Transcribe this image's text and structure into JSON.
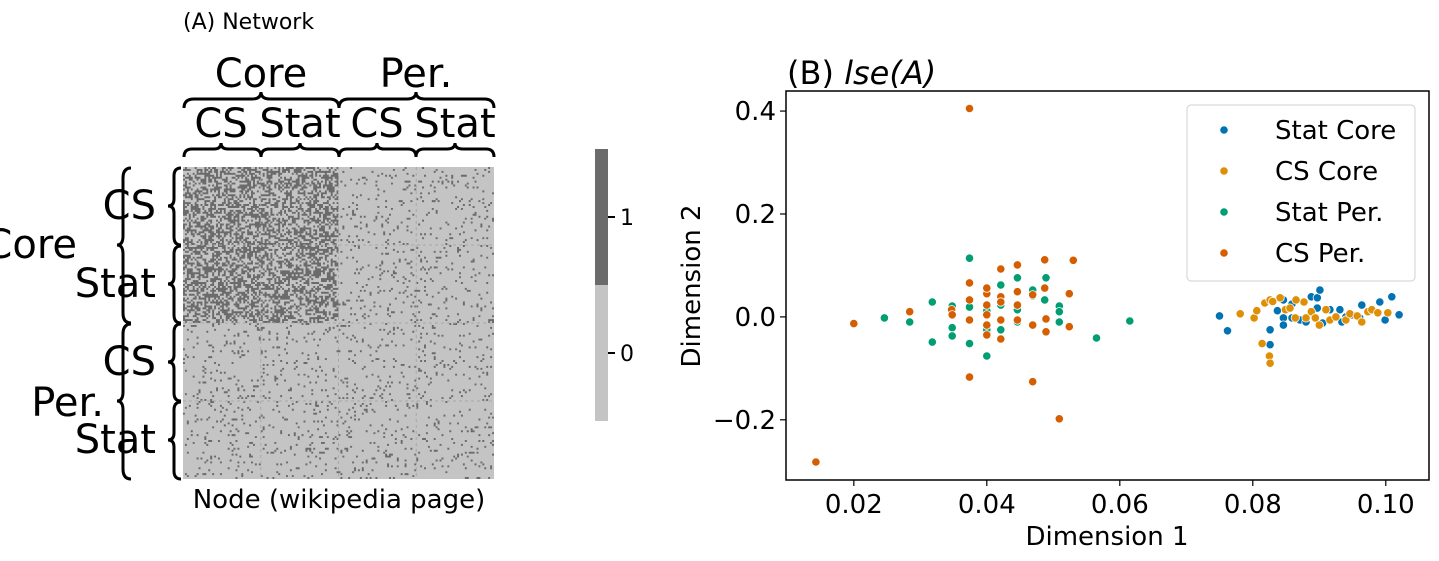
{
  "chart_data": [
    {
      "type": "heatmap",
      "title": "(A) Network",
      "xlabel": "Node (wikipedia page)",
      "ylabel": "",
      "top_groups": [
        "Core",
        "Per."
      ],
      "top_subgroups": [
        "CS",
        "Stat",
        "CS",
        "Stat"
      ],
      "left_groups": [
        "Core",
        "Per."
      ],
      "left_subgroups": [
        "CS",
        "Stat",
        "CS",
        "Stat"
      ],
      "block_density": [
        [
          0.5,
          0.5,
          0.07,
          0.07
        ],
        [
          0.5,
          0.5,
          0.07,
          0.07
        ],
        [
          0.07,
          0.07,
          0.07,
          0.07
        ],
        [
          0.07,
          0.07,
          0.07,
          0.07
        ]
      ],
      "nodes_per_block": 40,
      "colorbar": {
        "ticks": [
          0,
          1
        ],
        "tick_labels": [
          "0",
          "1"
        ],
        "range": [
          -0.5,
          1.5
        ],
        "colors": {
          "0": "#c4c4c4",
          "1": "#6b6b6b"
        }
      }
    },
    {
      "type": "scatter",
      "title_prefix": "(B) ",
      "title_math": "lse(A)",
      "xlabel": "Dimension 1",
      "ylabel": "Dimension 2",
      "xlim": [
        0.0098,
        0.1065
      ],
      "ylim": [
        -0.317,
        0.439
      ],
      "xticks": [
        0.02,
        0.04,
        0.06,
        0.08,
        0.1
      ],
      "xtick_labels": [
        "0.02",
        "0.04",
        "0.06",
        "0.08",
        "0.10"
      ],
      "yticks": [
        -0.2,
        0.0,
        0.2,
        0.4
      ],
      "ytick_labels": [
        "−0.2",
        "0.0",
        "0.2",
        "0.4"
      ],
      "grid": false,
      "legend_position": "top-right",
      "series": [
        {
          "name": "Stat Core",
          "color": "#0173b2",
          "points": [
            [
              0.075,
              0.002
            ],
            [
              0.0762,
              -0.027
            ],
            [
              0.0826,
              -0.025
            ],
            [
              0.0837,
              0.012
            ],
            [
              0.0846,
              0.033
            ],
            [
              0.0846,
              -0.002
            ],
            [
              0.0846,
              -0.016
            ],
            [
              0.0859,
              0.025
            ],
            [
              0.0859,
              -0.002
            ],
            [
              0.0888,
              0.039
            ],
            [
              0.0897,
              0.037
            ],
            [
              0.0897,
              0.017
            ],
            [
              0.0901,
              0.052
            ],
            [
              0.0916,
              0.014
            ],
            [
              0.0934,
              -0.01
            ],
            [
              0.0949,
              0.004
            ],
            [
              0.0961,
              -0.002
            ],
            [
              0.0991,
              0.029
            ],
            [
              0.0999,
              -0.006
            ],
            [
              0.1009,
              0.039
            ],
            [
              0.102,
              0.004
            ],
            [
              0.0826,
              -0.054
            ],
            [
              0.0871,
              -0.006
            ],
            [
              0.0931,
              0.014
            ],
            [
              0.0964,
              0.023
            ],
            [
              0.088,
              -0.01
            ],
            [
              0.0905,
              -0.012
            ],
            [
              0.094,
              0.0
            ]
          ]
        },
        {
          "name": "CS Core",
          "color": "#de8f05",
          "points": [
            [
              0.0825,
              -0.076
            ],
            [
              0.0814,
              -0.052
            ],
            [
              0.0802,
              -0.002
            ],
            [
              0.0806,
              0.012
            ],
            [
              0.0818,
              0.027
            ],
            [
              0.0826,
              0.033
            ],
            [
              0.0849,
              0.014
            ],
            [
              0.0856,
              0.017
            ],
            [
              0.0864,
              -0.002
            ],
            [
              0.0877,
              0.029
            ],
            [
              0.088,
              -0.002
            ],
            [
              0.0888,
              0.01
            ],
            [
              0.0894,
              -0.002
            ],
            [
              0.09,
              -0.016
            ],
            [
              0.091,
              0.014
            ],
            [
              0.0916,
              -0.006
            ],
            [
              0.0925,
              0.0
            ],
            [
              0.094,
              -0.006
            ],
            [
              0.0946,
              0.006
            ],
            [
              0.0957,
              0.002
            ],
            [
              0.0964,
              -0.01
            ],
            [
              0.0973,
              0.01
            ],
            [
              0.0979,
              0.014
            ],
            [
              0.0988,
              0.008
            ],
            [
              0.1003,
              0.008
            ],
            [
              0.0865,
              0.033
            ],
            [
              0.0841,
              0.037
            ],
            [
              0.0781,
              0.006
            ],
            [
              0.0826,
              -0.09
            ],
            [
              0.083,
              0.03
            ]
          ]
        },
        {
          "name": "Stat Per.",
          "color": "#029e73",
          "points": [
            [
              0.0246,
              -0.002
            ],
            [
              0.0318,
              0.029
            ],
            [
              0.0318,
              -0.049
            ],
            [
              0.0348,
              0.021
            ],
            [
              0.0348,
              -0.021
            ],
            [
              0.0348,
              -0.037
            ],
            [
              0.0374,
              0.019
            ],
            [
              0.0374,
              -0.052
            ],
            [
              0.04,
              -0.076
            ],
            [
              0.0374,
              0.114
            ],
            [
              0.0421,
              0.062
            ],
            [
              0.0421,
              -0.025
            ],
            [
              0.0446,
              0.014
            ],
            [
              0.0469,
              0.052
            ],
            [
              0.0469,
              0.041
            ],
            [
              0.0509,
              -0.01
            ],
            [
              0.0565,
              -0.041
            ],
            [
              0.0446,
              0.076
            ],
            [
              0.0489,
              0.076
            ],
            [
              0.0509,
              0.021
            ],
            [
              0.0446,
              -0.01
            ],
            [
              0.0421,
              0.023
            ],
            [
              0.0487,
              0.033
            ],
            [
              0.04,
              0.012
            ],
            [
              0.0509,
              0.01
            ],
            [
              0.0615,
              -0.008
            ],
            [
              0.0284,
              -0.01
            ],
            [
              0.04,
              -0.025
            ]
          ]
        },
        {
          "name": "CS Per.",
          "color": "#d55e00",
          "points": [
            [
              0.0143,
              -0.282
            ],
            [
              0.02,
              -0.013
            ],
            [
              0.0284,
              0.01
            ],
            [
              0.0374,
              0.405
            ],
            [
              0.0374,
              -0.117
            ],
            [
              0.0469,
              -0.126
            ],
            [
              0.0509,
              -0.198
            ],
            [
              0.0421,
              0.093
            ],
            [
              0.0374,
              0.066
            ],
            [
              0.0374,
              0.033
            ],
            [
              0.0446,
              0.101
            ],
            [
              0.0487,
              0.111
            ],
            [
              0.0489,
              -0.004
            ],
            [
              0.0524,
              -0.019
            ],
            [
              0.0446,
              0.023
            ],
            [
              0.0469,
              0.043
            ],
            [
              0.0421,
              0.039
            ],
            [
              0.0421,
              -0.006
            ],
            [
              0.0446,
              -0.006
            ],
            [
              0.0469,
              -0.016
            ],
            [
              0.04,
              0.023
            ],
            [
              0.04,
              0.004
            ],
            [
              0.04,
              -0.016
            ],
            [
              0.04,
              -0.035
            ],
            [
              0.0347,
              0.014
            ],
            [
              0.0421,
              -0.043
            ],
            [
              0.0489,
              -0.029
            ],
            [
              0.0374,
              -0.006
            ],
            [
              0.0524,
              0.045
            ],
            [
              0.0487,
              0.056
            ],
            [
              0.0446,
              0.049
            ],
            [
              0.04,
              0.045
            ],
            [
              0.0421,
              0.029
            ],
            [
              0.04,
              0.056
            ],
            [
              0.053,
              0.11
            ],
            [
              0.0348,
              0.004
            ]
          ]
        }
      ]
    }
  ]
}
